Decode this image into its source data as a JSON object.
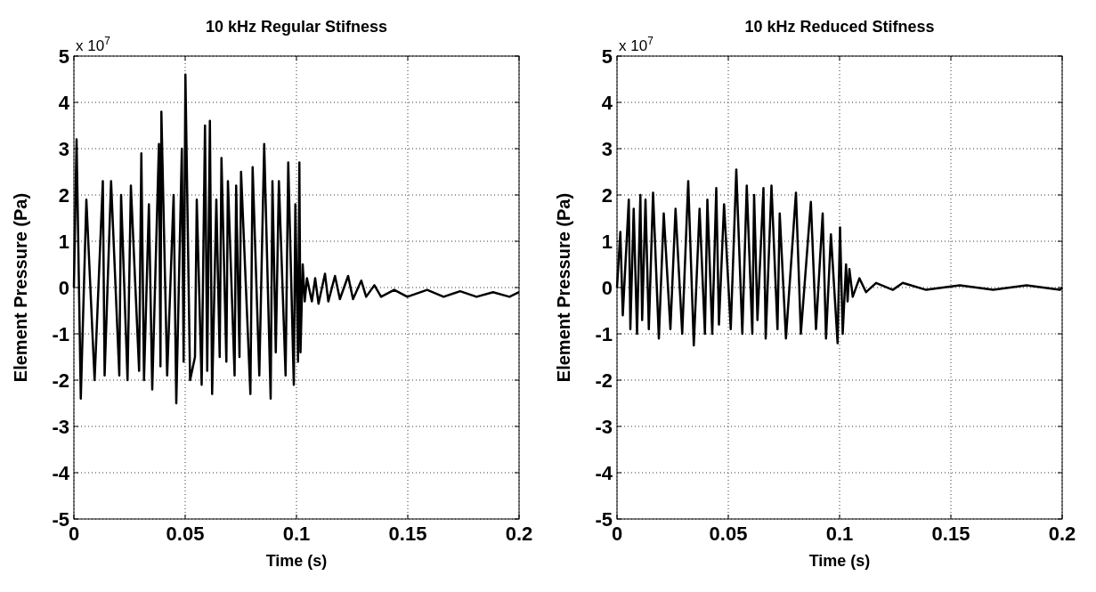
{
  "chart_data": [
    {
      "type": "line",
      "title": "10 kHz Regular Stifness",
      "xlabel": "Time (s)",
      "ylabel": "Element Pressure (Pa)",
      "annotations": [
        "x 10$^{7}$"
      ],
      "x": [
        0,
        0.0012,
        0.0031,
        0.0056,
        0.0093,
        0.013,
        0.0138,
        0.0167,
        0.0204,
        0.0212,
        0.0241,
        0.0256,
        0.0293,
        0.0303,
        0.0315,
        0.0337,
        0.0352,
        0.0382,
        0.0389,
        0.0393,
        0.0419,
        0.0448,
        0.046,
        0.0485,
        0.0493,
        0.0501,
        0.0522,
        0.0544,
        0.0552,
        0.0574,
        0.0589,
        0.0599,
        0.0611,
        0.0621,
        0.064,
        0.0655,
        0.0663,
        0.0685,
        0.0692,
        0.0722,
        0.0729,
        0.0744,
        0.0751,
        0.0793,
        0.0803,
        0.0833,
        0.0855,
        0.0884,
        0.0892,
        0.0907,
        0.0921,
        0.0951,
        0.0963,
        0.0988,
        0.0995,
        0.1007,
        0.1013,
        0.1018,
        0.1028,
        0.1037,
        0.1047,
        0.1069,
        0.1084,
        0.1099,
        0.1128,
        0.1143,
        0.1173,
        0.1195,
        0.1232,
        0.1254,
        0.1291,
        0.1313,
        0.135,
        0.138,
        0.1439,
        0.1498,
        0.1587,
        0.1661,
        0.1735,
        0.1809,
        0.1883,
        0.1957,
        0.2
      ],
      "series": [
        {
          "color": "#000000",
          "values": [
            0,
            3.2,
            -2.4,
            1.9,
            -2.0,
            2.3,
            -1.9,
            2.3,
            -1.9,
            2.0,
            -2.0,
            2.2,
            -1.8,
            2.9,
            -2.0,
            1.8,
            -2.2,
            3.1,
            -1.7,
            3.8,
            -1.9,
            2.0,
            -2.5,
            3.0,
            -1.6,
            4.6,
            -2.0,
            -1.5,
            1.9,
            -2.1,
            3.5,
            -1.8,
            3.6,
            -2.3,
            1.9,
            -1.5,
            2.8,
            -1.6,
            2.3,
            -1.9,
            2.2,
            -1.5,
            2.5,
            -2.3,
            2.6,
            -1.9,
            3.1,
            -2.4,
            2.3,
            -1.4,
            2.3,
            -1.9,
            2.7,
            -2.1,
            1.8,
            -1.6,
            2.7,
            -1.4,
            0.5,
            -0.3,
            0.2,
            -0.3,
            0.2,
            -0.35,
            0.3,
            -0.3,
            0.25,
            -0.25,
            0.25,
            -0.25,
            0.15,
            -0.2,
            0.05,
            -0.2,
            -0.05,
            -0.2,
            -0.05,
            -0.2,
            -0.08,
            -0.2,
            -0.1,
            -0.2,
            -0.1
          ]
        }
      ],
      "xlim": [
        0,
        0.2
      ],
      "ylim": [
        -5,
        5
      ],
      "xticks": [
        0,
        0.05,
        0.1,
        0.15,
        0.2
      ],
      "yticks": [
        -5,
        -4,
        -3,
        -2,
        -1,
        0,
        1,
        2,
        3,
        4,
        5
      ],
      "grid": true,
      "line_style": "solid"
    },
    {
      "type": "line",
      "title": "10 kHz Reduced Stifness",
      "xlabel": "Time (s)",
      "ylabel": "Element Pressure (Pa)",
      "annotations": [
        "x 10$^{7}$"
      ],
      "x": [
        0,
        0.0015,
        0.0026,
        0.0053,
        0.006,
        0.0075,
        0.009,
        0.0105,
        0.0113,
        0.0128,
        0.0143,
        0.0162,
        0.0188,
        0.021,
        0.024,
        0.0263,
        0.0293,
        0.032,
        0.0345,
        0.0371,
        0.0395,
        0.0406,
        0.0428,
        0.0446,
        0.0458,
        0.0481,
        0.0511,
        0.0536,
        0.0563,
        0.0583,
        0.0608,
        0.0616,
        0.0631,
        0.0658,
        0.0668,
        0.0694,
        0.0721,
        0.0731,
        0.0759,
        0.0804,
        0.0826,
        0.0871,
        0.0894,
        0.0924,
        0.0939,
        0.0961,
        0.0991,
        0.1002,
        0.1014,
        0.1029,
        0.1036,
        0.1044,
        0.1059,
        0.1089,
        0.1119,
        0.1164,
        0.1239,
        0.1284,
        0.1389,
        0.154,
        0.169,
        0.184,
        0.199,
        0.2
      ],
      "series": [
        {
          "color": "#000000",
          "values": [
            0,
            1.2,
            -0.6,
            1.9,
            -0.9,
            1.7,
            -1.0,
            2.0,
            -0.7,
            1.9,
            -0.9,
            2.05,
            -1.1,
            1.6,
            -0.9,
            1.7,
            -1.0,
            2.3,
            -1.25,
            1.7,
            -1.0,
            1.9,
            -1.0,
            2.15,
            -0.8,
            1.8,
            -0.9,
            2.55,
            -1.0,
            2.2,
            -1.0,
            2.0,
            -0.7,
            2.15,
            -1.1,
            2.2,
            -0.9,
            1.6,
            -1.1,
            2.05,
            -1.0,
            1.85,
            -0.9,
            1.6,
            -1.1,
            1.15,
            -1.2,
            1.3,
            -1.0,
            0.5,
            -0.3,
            0.4,
            -0.2,
            0.2,
            -0.1,
            0.1,
            -0.05,
            0.1,
            -0.05,
            0.05,
            -0.05,
            0.05,
            -0.05,
            0
          ]
        }
      ],
      "xlim": [
        0,
        0.2
      ],
      "ylim": [
        -5,
        5
      ],
      "xticks": [
        0,
        0.05,
        0.1,
        0.15,
        0.2
      ],
      "yticks": [
        -5,
        -4,
        -3,
        -2,
        -1,
        0,
        1,
        2,
        3,
        4,
        5
      ],
      "grid": true,
      "line_style": "solid"
    }
  ]
}
